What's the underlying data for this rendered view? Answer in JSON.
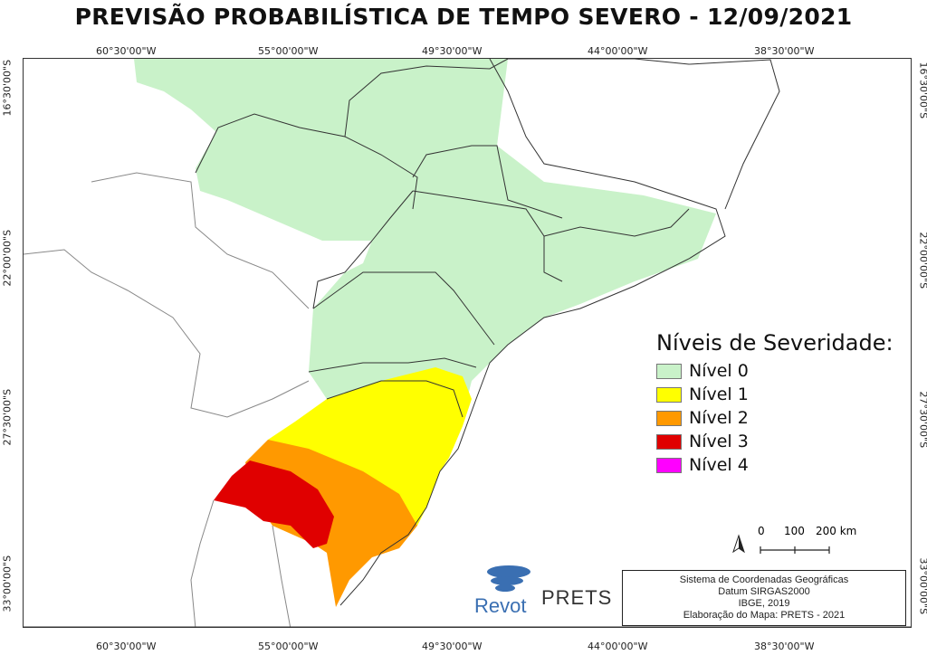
{
  "title": "PREVISÃO PROBABILÍSTICA DE TEMPO SEVERO - 12/09/2021",
  "longitudes": [
    "60°30'00\"W",
    "55°00'00\"W",
    "49°30'00\"W",
    "44°00'00\"W",
    "38°30'00\"W"
  ],
  "latitudes": [
    "16°30'00\"S",
    "22°00'00\"S",
    "27°30'00\"S",
    "33°00'00\"S"
  ],
  "legend": {
    "title": "Níveis de Severidade:",
    "items": [
      {
        "label": "Nível 0",
        "color": "#c9f2c9"
      },
      {
        "label": "Nível 1",
        "color": "#ffff00"
      },
      {
        "label": "Nível 2",
        "color": "#ff9900"
      },
      {
        "label": "Nível 3",
        "color": "#e00000"
      },
      {
        "label": "Nível 4",
        "color": "#ff00ff"
      }
    ]
  },
  "scale": {
    "labels": [
      "0",
      "100",
      "200 km"
    ]
  },
  "north_arrow": "north-arrow-icon",
  "info_box": [
    "Sistema de Coordenadas Geográficas",
    "Datum SIRGAS2000",
    "IBGE, 2019",
    "Elaboração do Mapa: PRETS - 2021"
  ],
  "logos": {
    "revot": "Revot",
    "prets": "PRETS"
  }
}
